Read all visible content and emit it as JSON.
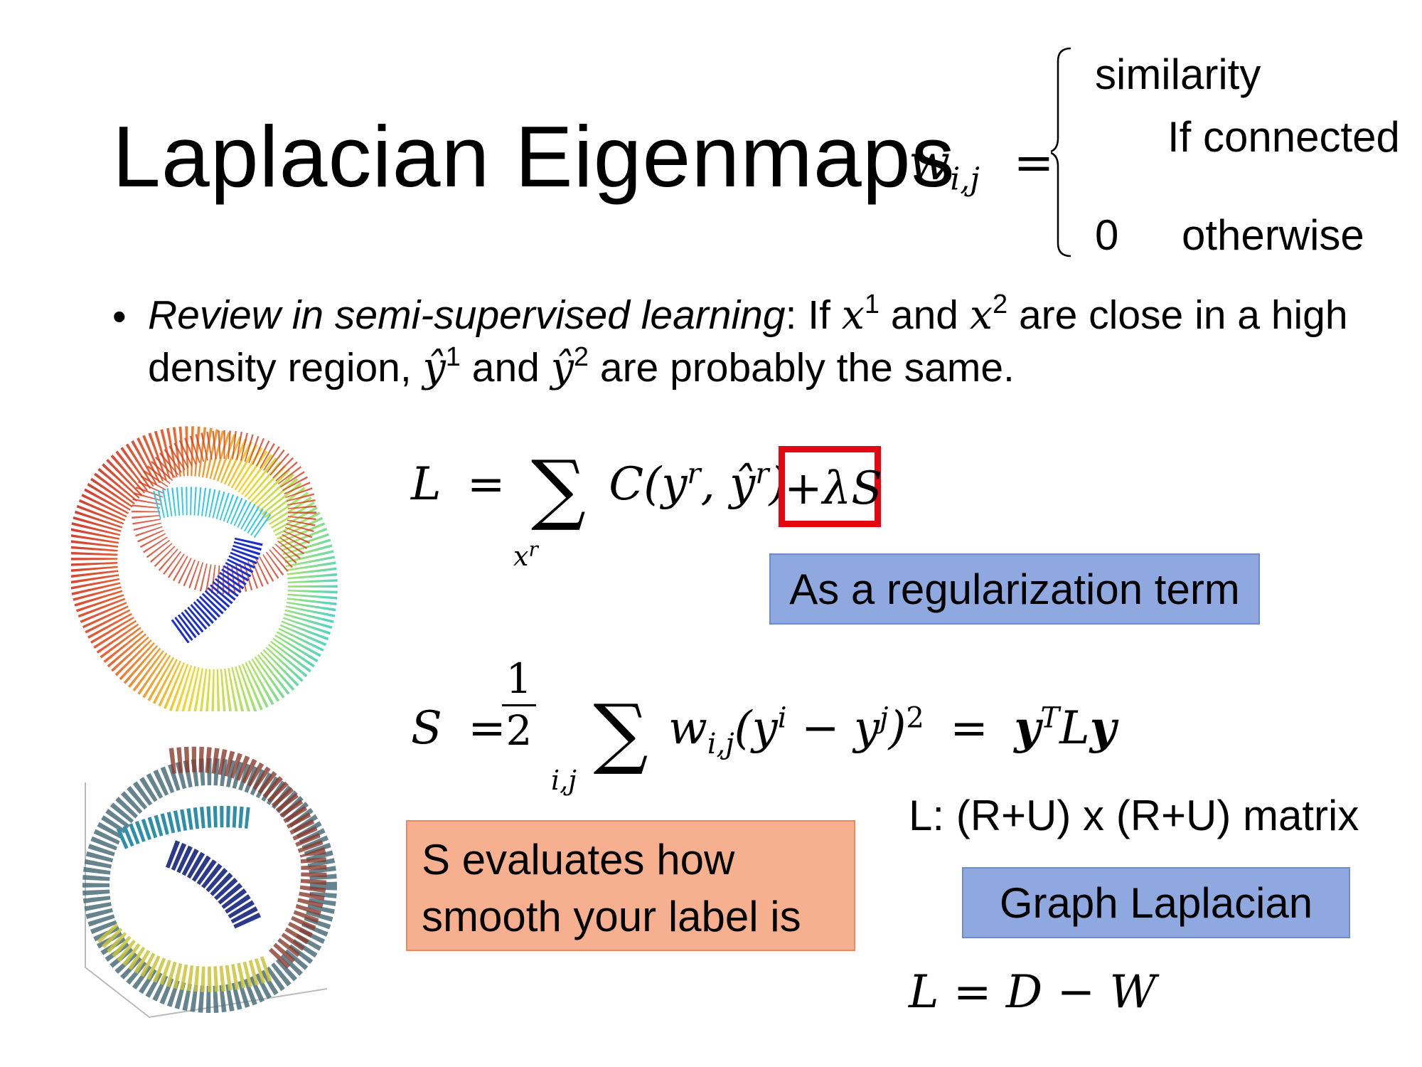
{
  "slide": {
    "title": "Laplacian Eigenmaps",
    "weight_def": {
      "lhs": "w",
      "lhs_sub": "i,j",
      "equals": "=",
      "case1_value": "similarity",
      "case1_condition": "If connected",
      "case2_value": "0",
      "case2_condition": "otherwise"
    },
    "bullet": {
      "marker": "•",
      "italic_lead": "Review in semi-supervised learning",
      "t1": ": If ",
      "x": "x",
      "sup1": "1",
      "t2": " and ",
      "sup2": "2",
      "t3": " are close in a high density region, ",
      "yhat": "ŷ",
      "t4": " are probably the same."
    },
    "loss_eq": {
      "L": "L",
      "eq": "=",
      "sigma": "∑",
      "sum_index": "x",
      "sum_index_sup": "r",
      "term": "C(y",
      "term_sup": "r",
      "comma": ", ŷ",
      "term_close": ")",
      "reg": "+λS"
    },
    "callout_regularization": "As a regularization term",
    "smooth_eq": {
      "S": "S",
      "eq": "=",
      "frac_num": "1",
      "frac_den": "2",
      "sigma": "∑",
      "sum_index": "i,j",
      "w": "w",
      "w_sub": "i,j",
      "open": "(y",
      "sup_i": "i",
      "minus": " − y",
      "sup_j": "j",
      "close": ")",
      "sq": "2",
      "eq2": "=",
      "y": "y",
      "yT": "T",
      "L": "L"
    },
    "callout_smooth": "S evaluates how smooth your label is",
    "matrix_note": "L: (R+U) x (R+U) matrix",
    "callout_graph": "Graph Laplacian",
    "laplacian_eq": "L = D − W"
  },
  "colors": {
    "blue_callout": "#8fa9e0",
    "orange_callout": "#f7b08f",
    "red_box": "#e3070f"
  }
}
